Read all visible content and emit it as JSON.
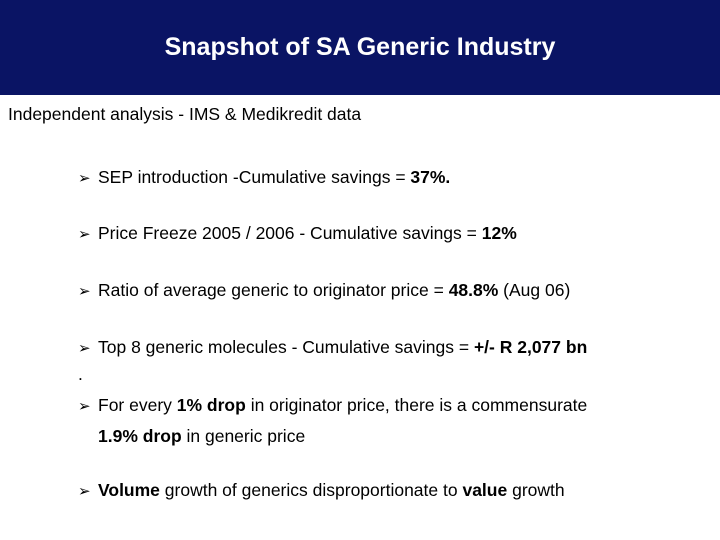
{
  "title": "Snapshot of SA Generic Industry",
  "subtitle": "Independent analysis - IMS & Medikredit data",
  "arrow_glyph": "➢",
  "bullets": {
    "b1": {
      "t1": "SEP introduction -Cumulative savings = ",
      "b1": "37%."
    },
    "b2": {
      "t1": "Price Freeze 2005 / 2006 - Cumulative savings = ",
      "b1": "12%"
    },
    "b3": {
      "t1": "Ratio of average generic to originator price = ",
      "b1": "48.8%",
      "t2": " (Aug 06)"
    },
    "b4": {
      "t1": "Top 8 generic molecules - Cumulative savings = ",
      "b1": "+/- R 2,077 bn"
    },
    "dot": ".",
    "b5": {
      "t1": "For every ",
      "b1": "1% drop",
      "t2": " in originator price, there is a commensurate",
      "b2": "1.9% drop",
      "t3": " in generic price"
    },
    "b6": {
      "b1": "Volume",
      "t1": " growth of generics disproportionate to ",
      "b2": "value",
      "t2": " growth"
    }
  }
}
